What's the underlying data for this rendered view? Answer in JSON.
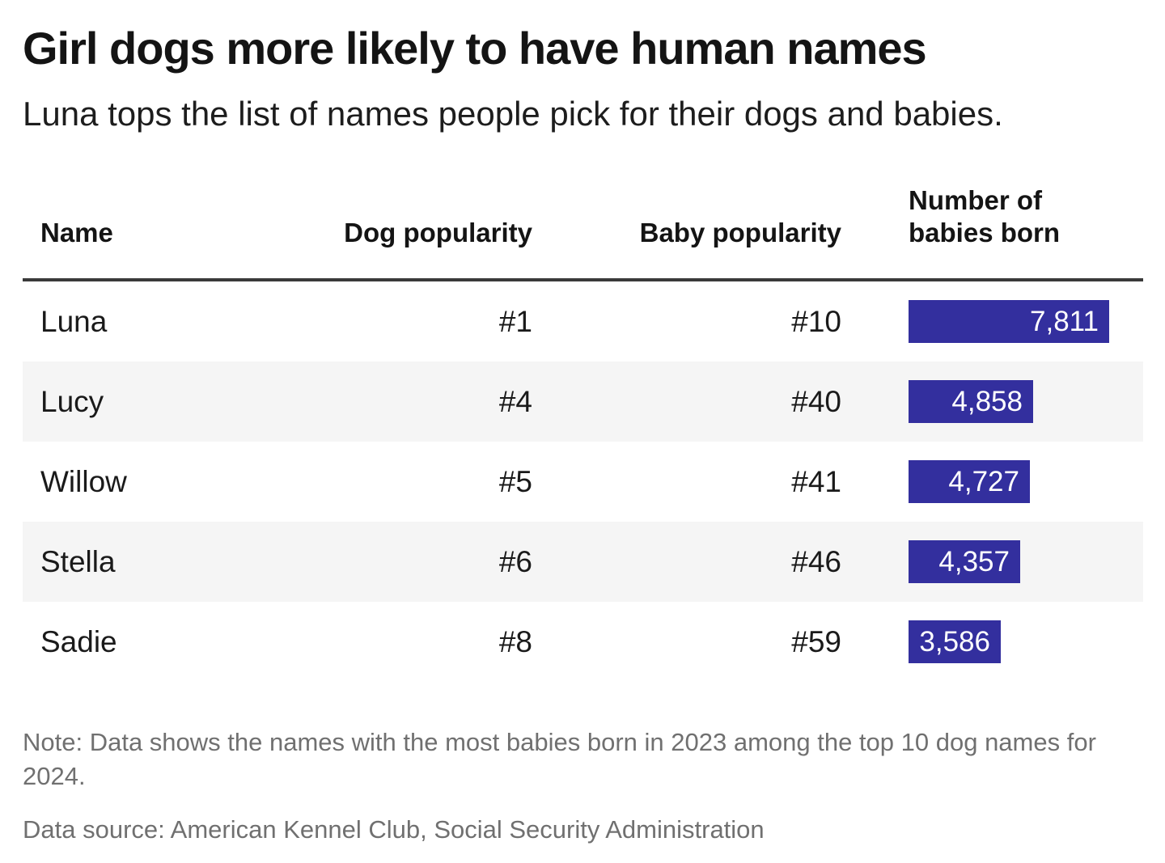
{
  "header": {
    "title": "Girl dogs more likely to have human names",
    "subtitle": "Luna tops the list of names people pick for their dogs and babies."
  },
  "table": {
    "columns": [
      "Name",
      "Dog popularity",
      "Baby popularity",
      "Number of babies born"
    ],
    "rows": [
      {
        "name": "Luna",
        "dog_rank": "#1",
        "baby_rank": "#10",
        "babies_label": "7,811",
        "babies": 7811
      },
      {
        "name": "Lucy",
        "dog_rank": "#4",
        "baby_rank": "#40",
        "babies_label": "4,858",
        "babies": 4858
      },
      {
        "name": "Willow",
        "dog_rank": "#5",
        "baby_rank": "#41",
        "babies_label": "4,727",
        "babies": 4727
      },
      {
        "name": "Stella",
        "dog_rank": "#6",
        "baby_rank": "#46",
        "babies_label": "4,357",
        "babies": 4357
      },
      {
        "name": "Sadie",
        "dog_rank": "#8",
        "baby_rank": "#59",
        "babies_label": "3,586",
        "babies": 3586
      }
    ]
  },
  "footer": {
    "note": "Note: Data shows the names with the most babies born in 2023 among the top 10 dog names for 2024.",
    "source": "Data source: American Kennel Club, Social Security Administration"
  },
  "colors": {
    "bar": "#332f9e",
    "stripe": "#f5f5f5",
    "header_rule": "#3a3a3a",
    "note_text": "#707070"
  },
  "chart_data": {
    "type": "table",
    "title": "Girl dogs more likely to have human names",
    "subtitle": "Luna tops the list of names people pick for their dogs and babies.",
    "columns": [
      "Name",
      "Dog popularity",
      "Baby popularity",
      "Number of babies born"
    ],
    "categories": [
      "Luna",
      "Lucy",
      "Willow",
      "Stella",
      "Sadie"
    ],
    "series": [
      {
        "name": "Dog popularity rank",
        "values": [
          1,
          4,
          5,
          6,
          8
        ]
      },
      {
        "name": "Baby popularity rank",
        "values": [
          10,
          40,
          41,
          46,
          59
        ]
      },
      {
        "name": "Number of babies born",
        "values": [
          7811,
          4858,
          4727,
          4357,
          3586
        ]
      }
    ],
    "bar_column": "Number of babies born",
    "bar_color": "#332f9e",
    "bar_value_max": 7811,
    "note": "Note: Data shows the names with the most babies born in 2023 among the top 10 dog names for 2024.",
    "source": "Data source: American Kennel Club, Social Security Administration"
  }
}
